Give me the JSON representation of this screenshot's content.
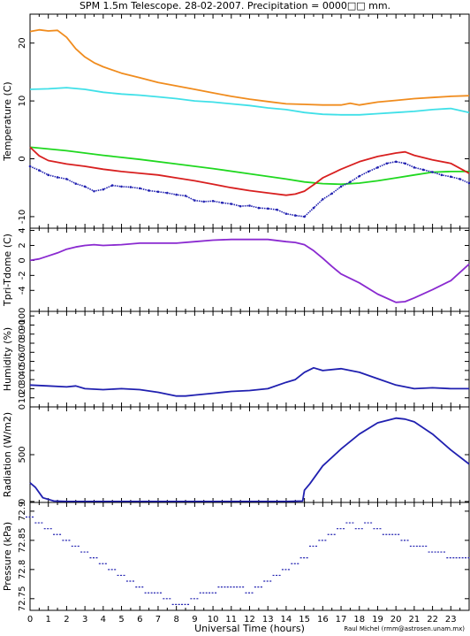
{
  "title": "SPM 1.5m Telescope. 28-02-2007. Precipitation = 0000□□ mm.",
  "credit": "Raul Michel (rmm@astrosen.unam.mx)",
  "chart_data": {
    "type": "line",
    "x_axis": {
      "label": "Universal Time (hours)",
      "range": [
        0,
        24
      ],
      "ticks": [
        "0",
        "1",
        "2",
        "3",
        "4",
        "5",
        "6",
        "7",
        "8",
        "9",
        "10",
        "11",
        "12",
        "13",
        "14",
        "15",
        "16",
        "17",
        "18",
        "19",
        "20",
        "21",
        "22",
        "23"
      ]
    },
    "panels": [
      {
        "id": "temperature",
        "ylabel": "Temperature (C)",
        "ylim": [
          -12,
          25
        ],
        "yticks": [
          -10,
          0,
          10,
          20
        ],
        "series": [
          {
            "color": "#f08c1e",
            "style": "line",
            "x": [
              0,
              0.5,
              1,
              1.5,
              2,
              2.5,
              3,
              3.5,
              4,
              5,
              6,
              7,
              8,
              9,
              10,
              11,
              12,
              13,
              14,
              15,
              16,
              17,
              17.5,
              18,
              19,
              20,
              21,
              22,
              23,
              24
            ],
            "y": [
              22,
              22.3,
              22.1,
              22.2,
              21,
              19,
              17.6,
              16.6,
              15.9,
              14.8,
              14,
              13.2,
              12.6,
              12,
              11.4,
              10.8,
              10.3,
              9.9,
              9.5,
              9.4,
              9.3,
              9.3,
              9.6,
              9.3,
              9.8,
              10.1,
              10.4,
              10.6,
              10.8,
              10.9
            ]
          },
          {
            "color": "#40e0e8",
            "style": "line",
            "x": [
              0,
              1,
              2,
              3,
              4,
              5,
              6,
              7,
              8,
              9,
              10,
              11,
              12,
              13,
              14,
              15,
              16,
              17,
              18,
              19,
              20,
              21,
              22,
              23,
              24
            ],
            "y": [
              12,
              12.1,
              12.3,
              12,
              11.5,
              11.2,
              11,
              10.7,
              10.4,
              10,
              9.8,
              9.5,
              9.2,
              8.8,
              8.5,
              8,
              7.7,
              7.6,
              7.6,
              7.8,
              8,
              8.2,
              8.5,
              8.7,
              8.0
            ]
          },
          {
            "color": "#20d820",
            "style": "line",
            "x": [
              0,
              2,
              4,
              6,
              8,
              10,
              12,
              14,
              15,
              16,
              17,
              18,
              19,
              20,
              21,
              22,
              23,
              24
            ],
            "y": [
              2,
              1.4,
              0.6,
              -0.1,
              -0.9,
              -1.7,
              -2.6,
              -3.5,
              -4,
              -4.3,
              -4.4,
              -4.2,
              -3.8,
              -3.3,
              -2.8,
              -2.3,
              -2.2,
              -2.2
            ]
          },
          {
            "color": "#d82020",
            "style": "line",
            "x": [
              0,
              0.5,
              1,
              2,
              3,
              4,
              5,
              6,
              7,
              8,
              9,
              10,
              11,
              12,
              13,
              14,
              14.5,
              15,
              15.5,
              16,
              17,
              18,
              19,
              20,
              20.5,
              21,
              22,
              23,
              24
            ],
            "y": [
              2,
              0.5,
              -0.3,
              -0.9,
              -1.3,
              -1.8,
              -2.2,
              -2.5,
              -2.8,
              -3.3,
              -3.8,
              -4.4,
              -5,
              -5.5,
              -5.9,
              -6.3,
              -6.1,
              -5.6,
              -4.5,
              -3.3,
              -1.8,
              -0.5,
              0.4,
              1,
              1.2,
              0.6,
              -0.2,
              -0.8,
              -2.5
            ]
          },
          {
            "color": "#2020b0",
            "style": "scatter",
            "x": [
              0,
              0.5,
              1,
              1.5,
              2,
              2.5,
              3,
              3.5,
              4,
              4.5,
              5,
              5.5,
              6,
              6.5,
              7,
              7.5,
              8,
              8.5,
              9,
              9.5,
              10,
              10.5,
              11,
              11.5,
              12,
              12.5,
              13,
              13.5,
              14,
              14.5,
              15,
              15.5,
              16,
              16.5,
              17,
              17.5,
              18,
              18.5,
              19,
              19.5,
              20,
              20.5,
              21,
              21.5,
              22,
              22.5,
              23,
              23.5,
              24
            ],
            "y": [
              -1.3,
              -2,
              -2.8,
              -3.2,
              -3.5,
              -4.3,
              -4.8,
              -5.6,
              -5.3,
              -4.6,
              -4.8,
              -4.9,
              -5.1,
              -5.5,
              -5.7,
              -5.9,
              -6.2,
              -6.4,
              -7.2,
              -7.4,
              -7.3,
              -7.6,
              -7.8,
              -8.2,
              -8.1,
              -8.5,
              -8.6,
              -8.8,
              -9.5,
              -9.8,
              -10,
              -8.5,
              -7,
              -6,
              -4.8,
              -4,
              -3,
              -2.2,
              -1.5,
              -0.8,
              -0.5,
              -0.8,
              -1.5,
              -1.9,
              -2.3,
              -2.8,
              -3.1,
              -3.5,
              -4.2
            ]
          }
        ]
      },
      {
        "id": "tpri-tdome",
        "ylabel": "Tpri-Tdome (C)",
        "ylim": [
          -6.8,
          4.3
        ],
        "yticks": [
          -4,
          -2,
          0,
          2,
          4
        ],
        "series": [
          {
            "color": "#8a2ad0",
            "style": "line",
            "x": [
              0,
              0.5,
              1,
              1.5,
              2,
              2.5,
              3,
              3.5,
              4,
              5,
              6,
              7,
              8,
              9,
              10,
              11,
              12,
              13,
              14,
              14.5,
              15,
              15.5,
              16,
              16.5,
              17,
              18,
              19,
              20,
              20.5,
              21,
              22,
              23,
              24
            ],
            "y": [
              0,
              0.2,
              0.6,
              1,
              1.5,
              1.8,
              2,
              2.1,
              2,
              2.1,
              2.3,
              2.3,
              2.3,
              2.5,
              2.7,
              2.8,
              2.8,
              2.8,
              2.5,
              2.4,
              2.1,
              1.3,
              0.3,
              -0.8,
              -1.8,
              -3,
              -4.5,
              -5.6,
              -5.5,
              -5,
              -3.9,
              -2.7,
              -0.5
            ]
          }
        ]
      },
      {
        "id": "humidity",
        "ylabel": "Humidity (%)",
        "ylim": [
          0,
          105
        ],
        "yticks": [
          0,
          10,
          20,
          30,
          40,
          50,
          60,
          70,
          80,
          90,
          100
        ],
        "series": [
          {
            "color": "#2020b0",
            "style": "line",
            "x": [
              0,
              1,
              2,
              2.5,
              3,
              4,
              5,
              6,
              7,
              8,
              8.5,
              9,
              10,
              11,
              12,
              13,
              14,
              14.5,
              15,
              15.5,
              16,
              17,
              18,
              19,
              20,
              21,
              22,
              23,
              24
            ],
            "y": [
              24,
              23,
              22,
              23,
              20,
              19,
              20,
              19,
              16,
              12,
              12,
              13,
              15,
              17,
              18,
              20,
              27,
              30,
              38,
              43,
              40,
              42,
              38,
              31,
              24,
              20,
              21,
              20,
              20
            ]
          }
        ]
      },
      {
        "id": "radiation",
        "ylabel": "Radiation (W/m2)",
        "ylim": [
          -10,
          1010
        ],
        "yticks": [
          0,
          500
        ],
        "series": [
          {
            "color": "#2020b0",
            "style": "line",
            "x": [
              0,
              0.3,
              0.7,
              1.3,
              2,
              4,
              6,
              8,
              10,
              12,
              14,
              14.9,
              15,
              15.3,
              16,
              17,
              18,
              19,
              20,
              20.5,
              21,
              22,
              23,
              24
            ],
            "y": [
              200,
              150,
              40,
              5,
              0,
              0,
              0,
              0,
              0,
              0,
              0,
              5,
              120,
              190,
              380,
              560,
              720,
              840,
              890,
              880,
              850,
              720,
              550,
              400
            ]
          }
        ]
      },
      {
        "id": "pressure",
        "ylabel": "Pressure (kPa)",
        "ylim": [
          72.73,
          72.915
        ],
        "yticks": [
          72.75,
          72.8,
          72.85,
          72.9
        ],
        "ytick_labels": [
          "72.75",
          "72.8",
          "72.85",
          "72.9"
        ],
        "series": [
          {
            "color": "#2020b0",
            "style": "steps",
            "x": [
              0,
              0.5,
              1,
              1.5,
              2,
              2.5,
              3,
              3.5,
              4,
              4.5,
              5,
              5.5,
              6,
              6.5,
              7,
              7.5,
              8,
              8.5,
              9,
              9.5,
              10,
              10.5,
              11,
              11.5,
              12,
              12.5,
              13,
              13.5,
              14,
              14.5,
              15,
              15.5,
              16,
              16.5,
              17,
              17.5,
              18,
              18.5,
              19,
              19.5,
              20,
              20.5,
              21,
              21.5,
              22,
              22.5,
              23,
              23.5,
              24
            ],
            "y": [
              72.89,
              72.88,
              72.87,
              72.86,
              72.85,
              72.84,
              72.83,
              72.82,
              72.81,
              72.8,
              72.79,
              72.78,
              72.77,
              72.76,
              72.76,
              72.75,
              72.74,
              72.74,
              72.75,
              72.76,
              72.76,
              72.77,
              72.77,
              72.77,
              72.76,
              72.77,
              72.78,
              72.79,
              72.8,
              72.81,
              72.82,
              72.84,
              72.85,
              72.86,
              72.87,
              72.88,
              72.87,
              72.88,
              72.87,
              72.86,
              72.86,
              72.85,
              72.84,
              72.84,
              72.83,
              72.83,
              72.82,
              72.82,
              72.82
            ]
          }
        ]
      }
    ]
  }
}
